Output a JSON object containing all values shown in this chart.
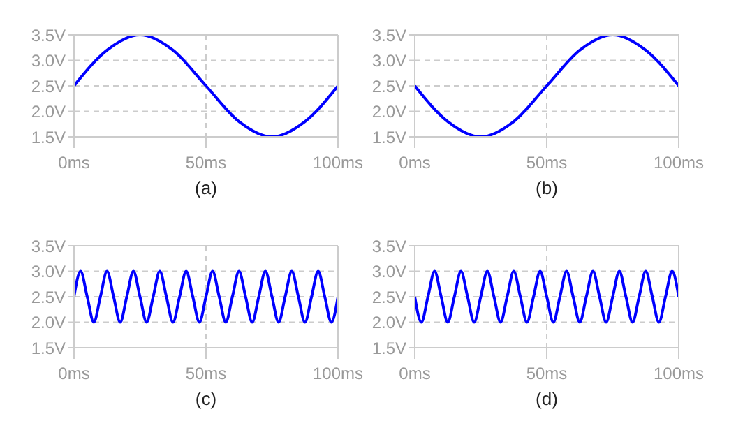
{
  "chart_data": [
    {
      "type": "line",
      "xlabel": "(a)",
      "x": [
        0,
        12.5,
        25,
        37.5,
        50,
        62.5,
        75,
        87.5,
        100
      ],
      "series": [
        {
          "color": "#0000ff",
          "values": [
            2.5,
            3.2,
            3.5,
            3.2,
            2.5,
            1.8,
            1.5,
            1.8,
            2.5
          ]
        }
      ],
      "xlim": [
        0,
        100
      ],
      "xticks": [
        {
          "value": 0,
          "label": "0ms"
        },
        {
          "value": 50,
          "label": "50ms"
        },
        {
          "value": 100,
          "label": "100ms"
        }
      ],
      "ylim": [
        1.5,
        3.5
      ],
      "yticks": [
        {
          "value": 1.5,
          "label": "1.5V"
        },
        {
          "value": 2,
          "label": "2.0V"
        },
        {
          "value": 2.5,
          "label": "2.5V"
        },
        {
          "value": 3,
          "label": "3.0V"
        },
        {
          "value": 3.5,
          "label": "3.5V"
        }
      ],
      "grid": true
    },
    {
      "type": "line",
      "xlabel": "(b)",
      "x": [
        0,
        12.5,
        25,
        37.5,
        50,
        62.5,
        75,
        87.5,
        100
      ],
      "series": [
        {
          "color": "#0000ff",
          "values": [
            2.5,
            1.8,
            1.5,
            1.8,
            2.5,
            3.2,
            3.5,
            3.2,
            2.5
          ]
        }
      ],
      "xlim": [
        0,
        100
      ],
      "xticks": [
        {
          "value": 0,
          "label": "0ms"
        },
        {
          "value": 50,
          "label": "50ms"
        },
        {
          "value": 100,
          "label": "100ms"
        }
      ],
      "ylim": [
        1.5,
        3.5
      ],
      "yticks": [
        {
          "value": 1.5,
          "label": "1.5V"
        },
        {
          "value": 2,
          "label": "2.0V"
        },
        {
          "value": 2.5,
          "label": "2.5V"
        },
        {
          "value": 3,
          "label": "3.0V"
        },
        {
          "value": 3.5,
          "label": "3.5V"
        }
      ],
      "grid": true
    },
    {
      "type": "line",
      "xlabel": "(c)",
      "x": [
        0,
        2.5,
        5,
        7.5,
        10,
        12.5,
        15,
        17.5,
        20,
        22.5,
        25,
        27.5,
        30,
        32.5,
        35,
        37.5,
        40,
        42.5,
        45,
        47.5,
        50,
        52.5,
        55,
        57.5,
        60,
        62.5,
        65,
        67.5,
        70,
        72.5,
        75,
        77.5,
        80,
        82.5,
        85,
        87.5,
        90,
        92.5,
        95,
        97.5,
        100
      ],
      "series": [
        {
          "color": "#0000ff",
          "values": [
            2.5,
            3,
            2.5,
            2,
            2.5,
            3,
            2.5,
            2,
            2.5,
            3,
            2.5,
            2,
            2.5,
            3,
            2.5,
            2,
            2.5,
            3,
            2.5,
            2,
            2.5,
            3,
            2.5,
            2,
            2.5,
            3,
            2.5,
            2,
            2.5,
            3,
            2.5,
            2,
            2.5,
            3,
            2.5,
            2,
            2.5,
            3,
            2.5,
            2,
            2.5
          ]
        }
      ],
      "xlim": [
        0,
        100
      ],
      "xticks": [
        {
          "value": 0,
          "label": "0ms"
        },
        {
          "value": 50,
          "label": "50ms"
        },
        {
          "value": 100,
          "label": "100ms"
        }
      ],
      "ylim": [
        1.5,
        3.5
      ],
      "yticks": [
        {
          "value": 1.5,
          "label": "1.5V"
        },
        {
          "value": 2,
          "label": "2.0V"
        },
        {
          "value": 2.5,
          "label": "2.5V"
        },
        {
          "value": 3,
          "label": "3.0V"
        },
        {
          "value": 3.5,
          "label": "3.5V"
        }
      ],
      "grid": true
    },
    {
      "type": "line",
      "xlabel": "(d)",
      "x": [
        0,
        2.5,
        5,
        7.5,
        10,
        12.5,
        15,
        17.5,
        20,
        22.5,
        25,
        27.5,
        30,
        32.5,
        35,
        37.5,
        40,
        42.5,
        45,
        47.5,
        50,
        52.5,
        55,
        57.5,
        60,
        62.5,
        65,
        67.5,
        70,
        72.5,
        75,
        77.5,
        80,
        82.5,
        85,
        87.5,
        90,
        92.5,
        95,
        97.5,
        100
      ],
      "series": [
        {
          "color": "#0000ff",
          "values": [
            2.5,
            2,
            2.5,
            3,
            2.5,
            2,
            2.5,
            3,
            2.5,
            2,
            2.5,
            3,
            2.5,
            2,
            2.5,
            3,
            2.5,
            2,
            2.5,
            3,
            2.5,
            2,
            2.5,
            3,
            2.5,
            2,
            2.5,
            3,
            2.5,
            2,
            2.5,
            3,
            2.5,
            2,
            2.5,
            3,
            2.5,
            2,
            2.5,
            3,
            2.5
          ]
        }
      ],
      "xlim": [
        0,
        100
      ],
      "xticks": [
        {
          "value": 0,
          "label": "0ms"
        },
        {
          "value": 50,
          "label": "50ms"
        },
        {
          "value": 100,
          "label": "100ms"
        }
      ],
      "ylim": [
        1.5,
        3.5
      ],
      "yticks": [
        {
          "value": 1.5,
          "label": "1.5V"
        },
        {
          "value": 2,
          "label": "2.0V"
        },
        {
          "value": 2.5,
          "label": "2.5V"
        },
        {
          "value": 3,
          "label": "3.0V"
        },
        {
          "value": 3.5,
          "label": "3.5V"
        }
      ],
      "grid": true
    }
  ]
}
